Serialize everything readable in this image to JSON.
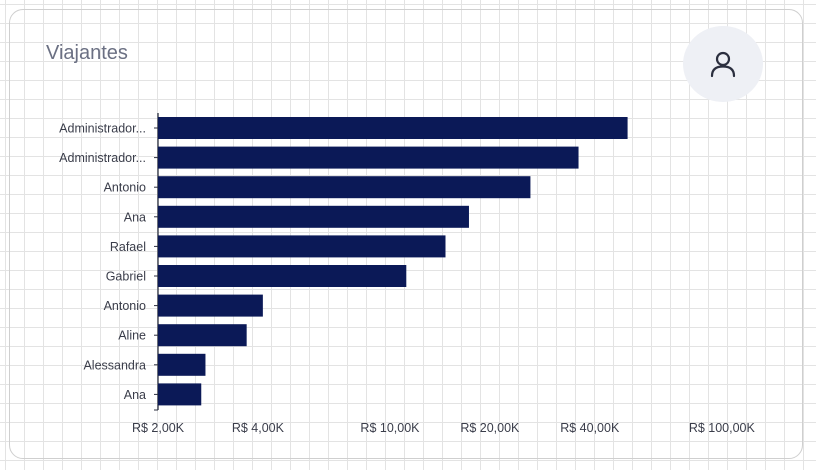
{
  "card": {
    "title": "Viajantes"
  },
  "icons": {
    "user": "user-icon"
  },
  "colors": {
    "bar": "#0b1957",
    "text": "#3a3d4a",
    "title": "#6b7083",
    "avatar_bg": "#eef0f5"
  },
  "chart_data": {
    "type": "bar",
    "orientation": "horizontal",
    "scale": "log",
    "title": "Viajantes",
    "categories": [
      "Administrador...",
      "Administrador...",
      "Antonio",
      "Ana",
      "Rafael",
      "Gabriel",
      "Antonio",
      "Aline",
      "Alessandra",
      "Ana"
    ],
    "values": [
      52000,
      37000,
      26500,
      17300,
      14700,
      11200,
      4140,
      3700,
      2780,
      2700
    ],
    "x_ticks": [
      {
        "value": 2000,
        "label": "R$ 2,00K"
      },
      {
        "value": 4000,
        "label": "R$ 4,00K"
      },
      {
        "value": 10000,
        "label": "R$ 10,00K"
      },
      {
        "value": 20000,
        "label": "R$ 20,00K"
      },
      {
        "value": 40000,
        "label": "R$ 40,00K"
      },
      {
        "value": 100000,
        "label": "R$ 100,00K"
      }
    ],
    "xlim": [
      2000,
      155000
    ],
    "grid": false,
    "legend": "none"
  }
}
